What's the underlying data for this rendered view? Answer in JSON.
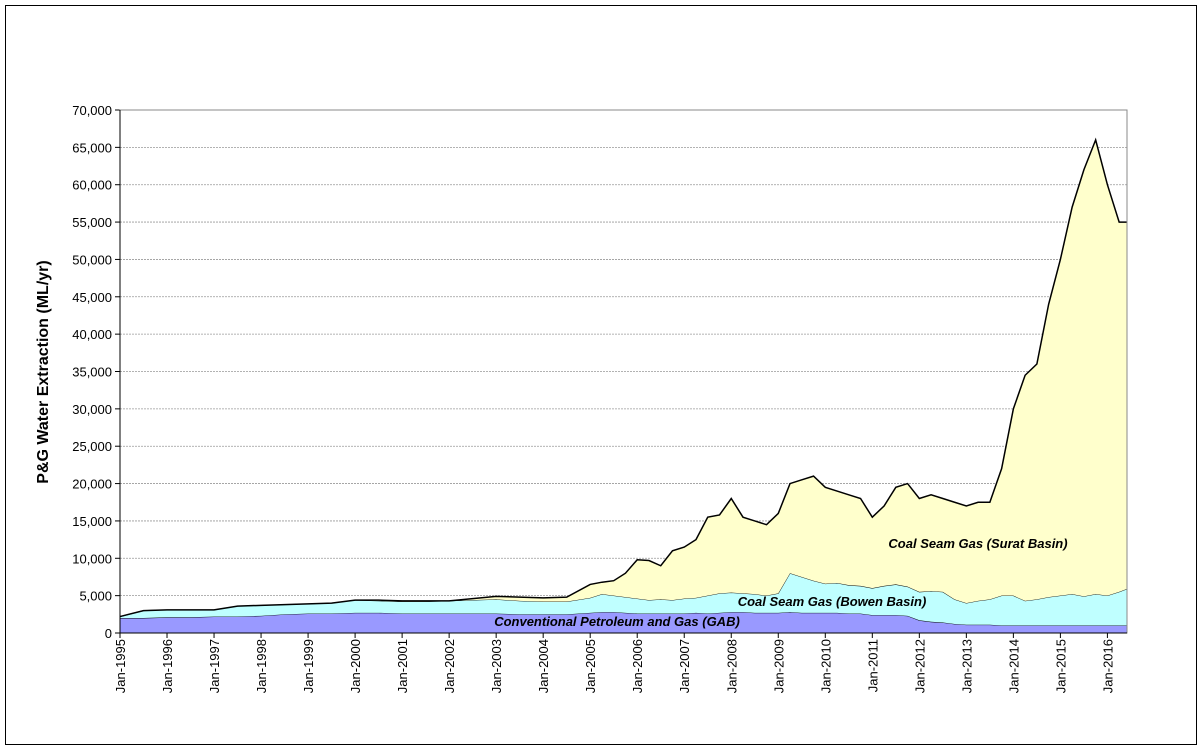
{
  "chart_data": {
    "type": "stacked-area",
    "y_label": "P&G Water Extraction (ML/yr)",
    "x": [
      "1995-01",
      "1995-07",
      "1996-01",
      "1996-07",
      "1997-01",
      "1997-07",
      "1998-01",
      "1998-07",
      "1999-01",
      "1999-07",
      "2000-01",
      "2000-07",
      "2001-01",
      "2001-07",
      "2002-01",
      "2002-07",
      "2003-01",
      "2003-07",
      "2004-01",
      "2004-07",
      "2005-01",
      "2005-04",
      "2005-07",
      "2005-10",
      "2006-01",
      "2006-04",
      "2006-07",
      "2006-10",
      "2007-01",
      "2007-04",
      "2007-07",
      "2007-10",
      "2008-01",
      "2008-04",
      "2008-07",
      "2008-10",
      "2009-01",
      "2009-04",
      "2009-07",
      "2009-10",
      "2010-01",
      "2010-04",
      "2010-07",
      "2010-10",
      "2011-01",
      "2011-04",
      "2011-07",
      "2011-10",
      "2012-01",
      "2012-04",
      "2012-07",
      "2012-10",
      "2013-01",
      "2013-04",
      "2013-07",
      "2013-10",
      "2014-01",
      "2014-04",
      "2014-07",
      "2014-10",
      "2015-01",
      "2015-04",
      "2015-07",
      "2015-10",
      "2016-01",
      "2016-04",
      "2016-06"
    ],
    "series": [
      {
        "name": "Conventional Petroleum and Gas (GAB)",
        "color": "#9999ff",
        "values": [
          2000,
          2000,
          2100,
          2100,
          2200,
          2200,
          2300,
          2500,
          2600,
          2600,
          2700,
          2700,
          2600,
          2600,
          2600,
          2600,
          2600,
          2500,
          2500,
          2500,
          2700,
          2800,
          2800,
          2700,
          2600,
          2600,
          2600,
          2600,
          2600,
          2700,
          2600,
          2700,
          2800,
          2800,
          2700,
          2700,
          2700,
          2800,
          2700,
          2700,
          2700,
          2700,
          2600,
          2600,
          2400,
          2400,
          2400,
          2300,
          1700,
          1500,
          1400,
          1200,
          1100,
          1100,
          1100,
          1000,
          1000,
          1000,
          1000,
          1000,
          1000,
          1000,
          1000,
          1000,
          1000,
          1000,
          1000
        ]
      },
      {
        "name": "Coal Seam Gas (Bowen Basin)",
        "color": "#bfffff",
        "values": [
          200,
          1000,
          1000,
          1000,
          900,
          1400,
          1400,
          1300,
          1300,
          1400,
          1700,
          1600,
          1600,
          1600,
          1700,
          1800,
          1900,
          1800,
          1700,
          1700,
          2000,
          2400,
          2200,
          2100,
          2000,
          1800,
          1900,
          1800,
          2000,
          2000,
          2400,
          2600,
          2600,
          2500,
          2500,
          2300,
          2600,
          5200,
          4800,
          4300,
          3900,
          4000,
          3800,
          3700,
          3600,
          3900,
          4100,
          3900,
          3800,
          4100,
          4100,
          3300,
          2900,
          3200,
          3400,
          4000,
          4000,
          3300,
          3500,
          3800,
          4000,
          4200,
          3900,
          4200,
          4000,
          4500,
          4900
        ]
      },
      {
        "name": "Coal Seam Gas (Surat Basin)",
        "color": "#ffffcc",
        "values": [
          0,
          0,
          0,
          0,
          0,
          0,
          0,
          0,
          0,
          0,
          0,
          100,
          100,
          100,
          0,
          200,
          400,
          500,
          500,
          600,
          1800,
          1600,
          2000,
          3200,
          5200,
          5300,
          4500,
          6600,
          6900,
          7800,
          10500,
          10500,
          12600,
          10200,
          9800,
          9500,
          10700,
          12000,
          13000,
          14000,
          12900,
          12300,
          12100,
          11700,
          9500,
          10700,
          13000,
          13800,
          12500,
          12900,
          12500,
          13000,
          13000,
          13200,
          13000,
          17000,
          25000,
          30200,
          31500,
          39200,
          45000,
          51800,
          57100,
          60800,
          55000,
          49500,
          49100
        ]
      }
    ],
    "xlim": [
      "1995-01",
      "2016-06"
    ],
    "xticks": [
      {
        "value": "1995-01",
        "label": "Jan-1995"
      },
      {
        "value": "1996-01",
        "label": "Jan-1996"
      },
      {
        "value": "1997-01",
        "label": "Jan-1997"
      },
      {
        "value": "1998-01",
        "label": "Jan-1998"
      },
      {
        "value": "1999-01",
        "label": "Jan-1999"
      },
      {
        "value": "2000-01",
        "label": "Jan-2000"
      },
      {
        "value": "2001-01",
        "label": "Jan-2001"
      },
      {
        "value": "2002-01",
        "label": "Jan-2002"
      },
      {
        "value": "2003-01",
        "label": "Jan-2003"
      },
      {
        "value": "2004-01",
        "label": "Jan-2004"
      },
      {
        "value": "2005-01",
        "label": "Jan-2005"
      },
      {
        "value": "2006-01",
        "label": "Jan-2006"
      },
      {
        "value": "2007-01",
        "label": "Jan-2007"
      },
      {
        "value": "2008-01",
        "label": "Jan-2008"
      },
      {
        "value": "2009-01",
        "label": "Jan-2009"
      },
      {
        "value": "2010-01",
        "label": "Jan-2010"
      },
      {
        "value": "2011-01",
        "label": "Jan-2011"
      },
      {
        "value": "2012-01",
        "label": "Jan-2012"
      },
      {
        "value": "2013-01",
        "label": "Jan-2013"
      },
      {
        "value": "2014-01",
        "label": "Jan-2014"
      },
      {
        "value": "2015-01",
        "label": "Jan-2015"
      },
      {
        "value": "2016-01",
        "label": "Jan-2016"
      }
    ],
    "ylim": [
      0,
      70000
    ],
    "yticks": [
      0,
      {
        "value": 5000,
        "label": "5,000"
      },
      {
        "value": 10000,
        "label": "10,000"
      },
      {
        "value": 15000,
        "label": "15,000"
      },
      {
        "value": 20000,
        "label": "20,000"
      },
      {
        "value": 25000,
        "label": "25,000"
      },
      {
        "value": 30000,
        "label": "30,000"
      },
      {
        "value": 35000,
        "label": "35,000"
      },
      {
        "value": 40000,
        "label": "40,000"
      },
      {
        "value": 45000,
        "label": "45,000"
      },
      {
        "value": 50000,
        "label": "50,000"
      },
      {
        "value": 55000,
        "label": "55,000"
      },
      {
        "value": 60000,
        "label": "60,000"
      },
      {
        "value": 65000,
        "label": "65,000"
      },
      {
        "value": 70000,
        "label": "70,000"
      }
    ],
    "grid": true
  }
}
